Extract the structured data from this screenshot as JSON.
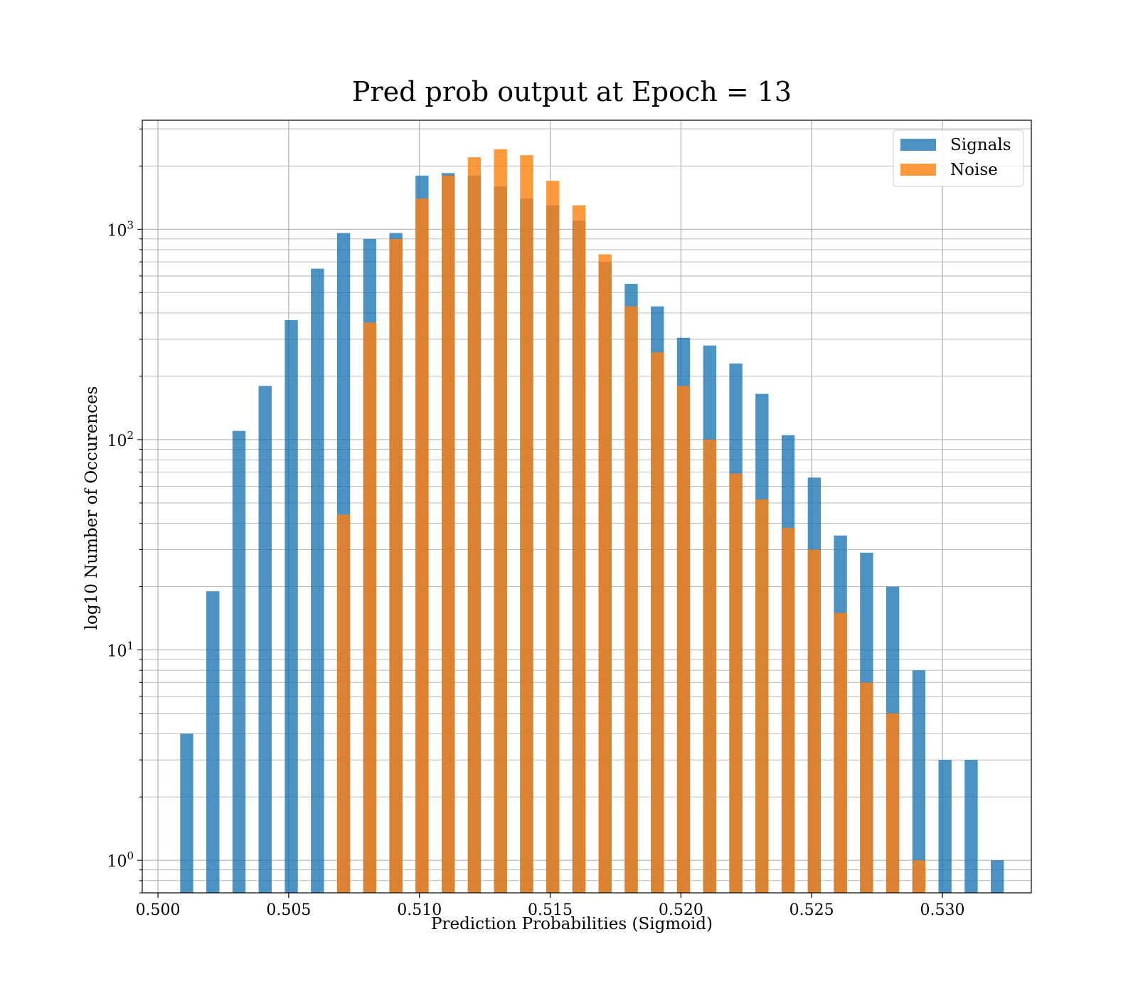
{
  "chart_data": {
    "type": "bar",
    "title": "Pred prob output at Epoch = 13",
    "xlabel": "Prediction Probabilities (Sigmoid)",
    "ylabel": "log10 Number of Occurences",
    "y_scale": "log",
    "xlim": [
      0.4994,
      0.5334
    ],
    "ylim": [
      0.7,
      3300
    ],
    "grid": true,
    "legend_position": "top-right",
    "x_ticks": [
      0.5,
      0.505,
      0.51,
      0.515,
      0.52,
      0.525,
      0.53
    ],
    "x_tick_labels": [
      "0.500",
      "0.505",
      "0.510",
      "0.515",
      "0.520",
      "0.525",
      "0.530"
    ],
    "y_ticks": [
      1,
      10,
      100,
      1000
    ],
    "bar_width": 0.0005,
    "colors": {
      "Signals": "#1f77b4",
      "Noise": "#ff7f0e"
    },
    "series": [
      {
        "name": "Signals",
        "x": [
          0.5011,
          0.5021,
          0.5031,
          0.5041,
          0.5051,
          0.5061,
          0.5071,
          0.5081,
          0.5091,
          0.5101,
          0.5111,
          0.5121,
          0.5131,
          0.5141,
          0.5151,
          0.5161,
          0.5171,
          0.5181,
          0.5191,
          0.5201,
          0.5211,
          0.5221,
          0.5231,
          0.5241,
          0.5251,
          0.5261,
          0.5271,
          0.5281,
          0.5291,
          0.5301,
          0.5311,
          0.5321
        ],
        "values": [
          4,
          19,
          110,
          180,
          370,
          650,
          960,
          900,
          960,
          1800,
          1850,
          1800,
          1600,
          1400,
          1300,
          1100,
          700,
          550,
          430,
          305,
          280,
          230,
          165,
          105,
          66,
          35,
          29,
          20,
          8,
          3,
          3,
          1
        ]
      },
      {
        "name": "Noise",
        "x": [
          0.5071,
          0.5081,
          0.5091,
          0.5101,
          0.5111,
          0.5121,
          0.5131,
          0.5141,
          0.5151,
          0.5161,
          0.5171,
          0.5181,
          0.5191,
          0.5201,
          0.5211,
          0.5221,
          0.5231,
          0.5241,
          0.5251,
          0.5261,
          0.5271,
          0.5281,
          0.5291
        ],
        "values": [
          44,
          360,
          900,
          1400,
          1800,
          2200,
          2400,
          2250,
          1700,
          1300,
          760,
          430,
          260,
          180,
          100,
          69,
          52,
          38,
          30,
          15,
          7,
          5,
          1
        ]
      }
    ]
  }
}
